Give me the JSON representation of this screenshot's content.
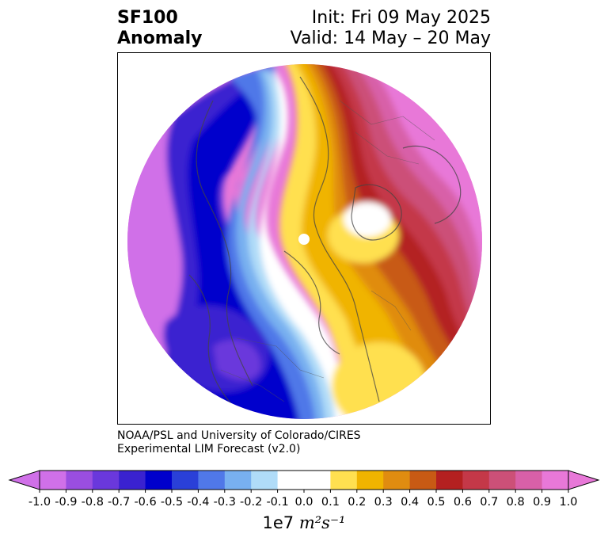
{
  "header": {
    "variable": "SF100",
    "kind": "Anomaly",
    "init": "Init: Fri 09 May 2025",
    "valid": "Valid: 14 May – 20 May"
  },
  "credit": {
    "line1": "NOAA/PSL and University of Colorado/CIRES",
    "line2": "Experimental LIM Forecast (v2.0)"
  },
  "colorbar": {
    "ticks": [
      "-1.0",
      "-0.9",
      "-0.8",
      "-0.7",
      "-0.6",
      "-0.5",
      "-0.4",
      "-0.3",
      "-0.2",
      "-0.1",
      "0.0",
      "0.1",
      "0.2",
      "0.3",
      "0.4",
      "0.5",
      "0.6",
      "0.7",
      "0.8",
      "0.9",
      "1.0"
    ],
    "colors": [
      "#d070e8",
      "#9a4ee0",
      "#6a38dc",
      "#3a22d0",
      "#0000cc",
      "#2a40d8",
      "#5078e8",
      "#78b0f0",
      "#b0dcf8",
      "#ffffff",
      "#ffffff",
      "#ffe050",
      "#f0b400",
      "#e08c10",
      "#c85a14",
      "#b42020",
      "#c43848",
      "#cc5078",
      "#d860a8",
      "#e878d8"
    ],
    "under_color": "#d070e8",
    "over_color": "#e878d8",
    "units_prefix": "1e7 ",
    "units_math": "m²s⁻¹"
  }
}
